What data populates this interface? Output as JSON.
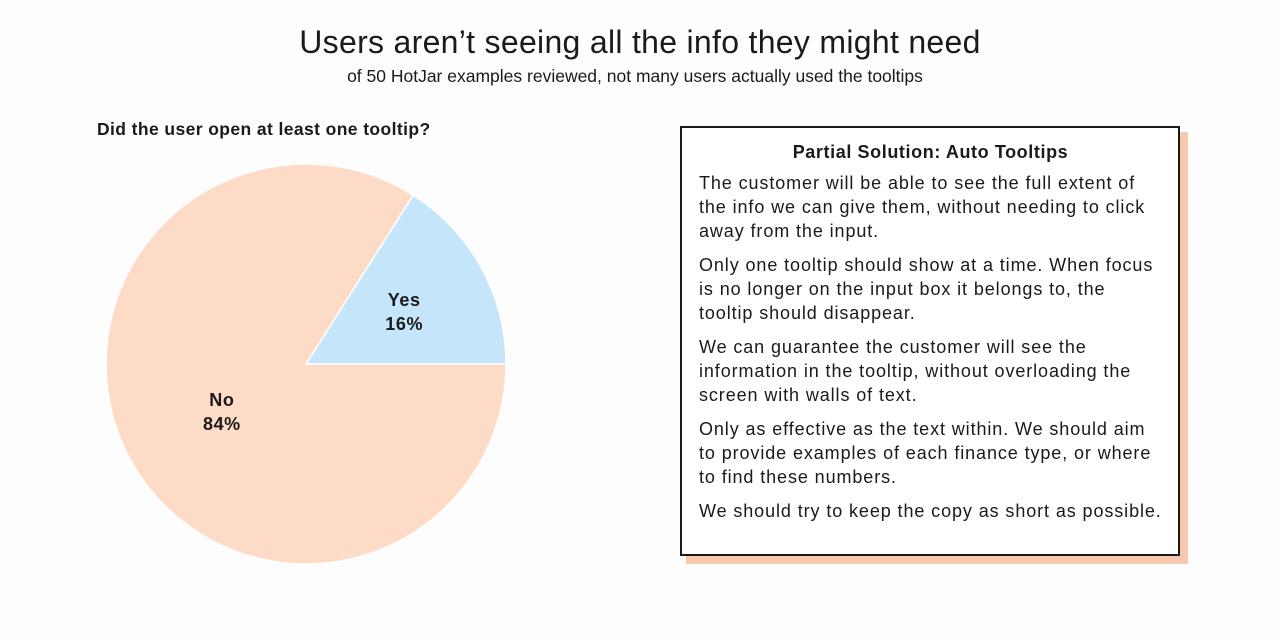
{
  "header": {
    "title": "Users aren’t seeing all the info they might need",
    "subtitle": "of 50 HotJar examples reviewed, not many users actually used the tooltips"
  },
  "chart_data": {
    "type": "pie",
    "title": "Did the user open at least one tooltip?",
    "categories": [
      "Yes",
      "No"
    ],
    "values": [
      16,
      84
    ],
    "value_labels": [
      "16%",
      "84%"
    ],
    "colors": [
      "#c5e6fa",
      "#fedbc7"
    ]
  },
  "card": {
    "title": "Partial Solution: Auto Tooltips",
    "paragraphs": [
      "The customer will be able to see the full extent of the info we can give them, without needing to click away from the input.",
      "Only one tooltip should show at a time. When focus is no longer on the input box it belongs to, the tooltip should disappear.",
      "We can guarantee the customer will see the information in the tooltip, without overloading the screen with walls of text.",
      "Only as effective as the text within. We should aim to provide examples of each finance type, or where to find these numbers.",
      "We should try to keep the copy as short as possible."
    ],
    "shadow_color": "#f6c9ae"
  }
}
